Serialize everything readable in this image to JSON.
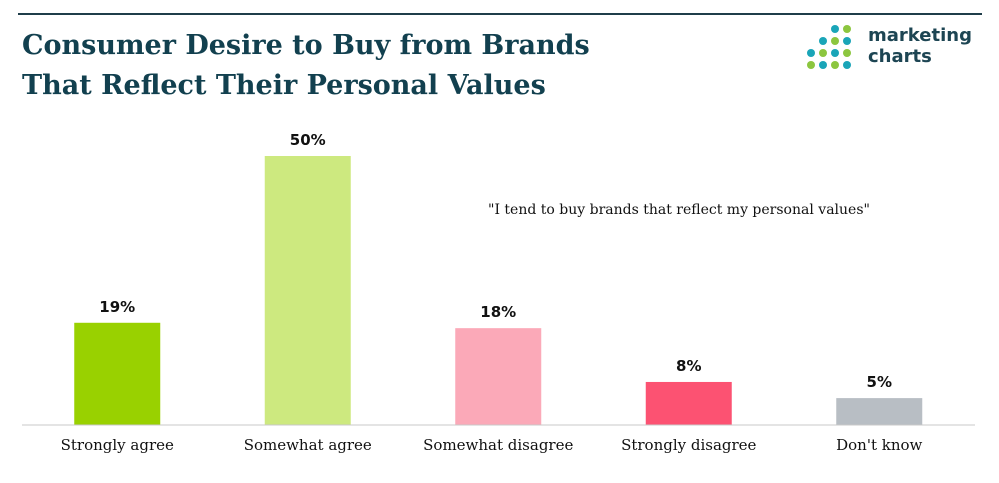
{
  "header": {
    "title_line1": "Consumer Desire to Buy from Brands",
    "title_line2": "That Reflect Their Personal Values"
  },
  "logo": {
    "line1": "marketing",
    "line2": "charts",
    "dot_colors": [
      "#1aa5b8",
      "#8cc63f"
    ]
  },
  "chart_data": {
    "type": "bar",
    "categories": [
      "Strongly agree",
      "Somewhat agree",
      "Somewhat disagree",
      "Strongly disagree",
      "Don't know"
    ],
    "values": [
      19,
      50,
      18,
      8,
      5
    ],
    "value_labels": [
      "19%",
      "50%",
      "18%",
      "8%",
      "5%"
    ],
    "colors": [
      "#99d100",
      "#cde97f",
      "#fba9b8",
      "#fc5272",
      "#b8bec4"
    ],
    "title": "Consumer Desire to Buy from Brands That Reflect Their Personal Values",
    "annotation": "\"I tend to buy brands that reflect my personal values\"",
    "xlabel": "",
    "ylabel": "",
    "ylim": [
      0,
      50
    ],
    "grid": false,
    "legend": "none"
  }
}
